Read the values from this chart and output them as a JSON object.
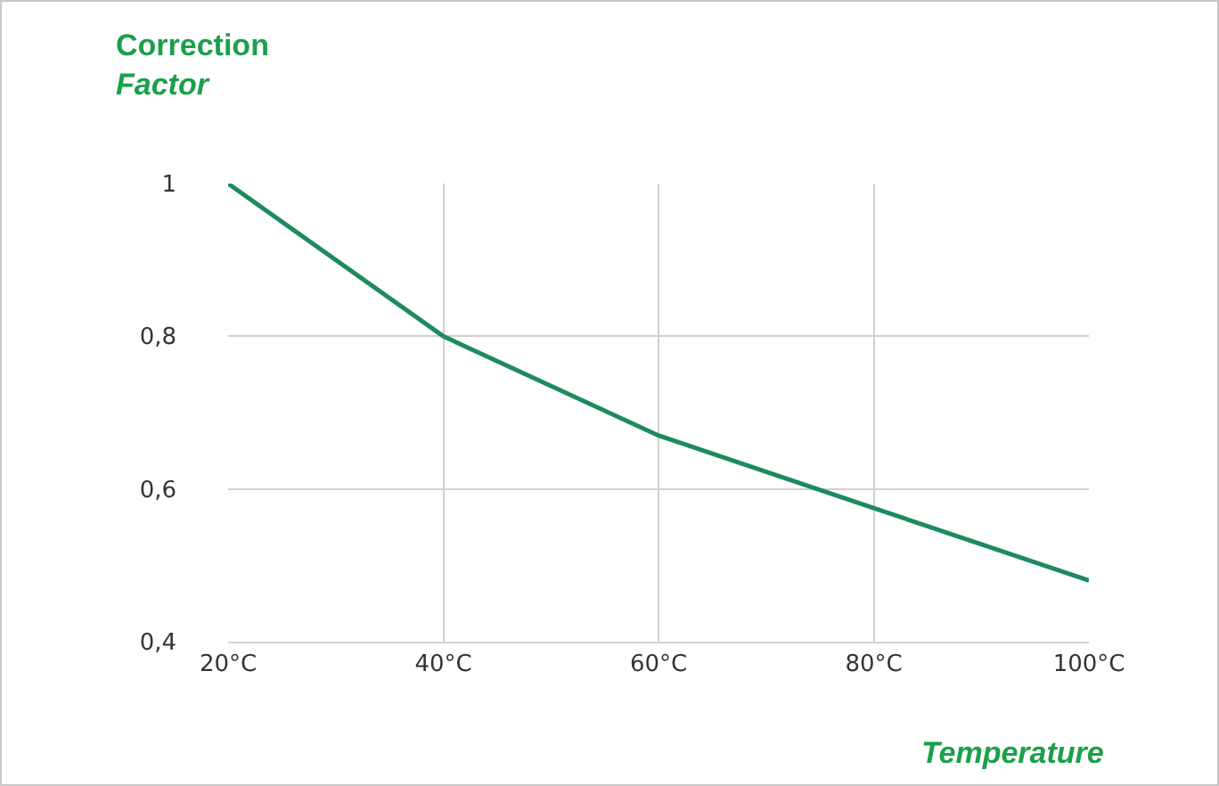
{
  "chart_data": {
    "type": "line",
    "ylabel": "Correction Factor",
    "xlabel": "Temperature",
    "x": [
      20,
      40,
      60,
      80,
      100
    ],
    "series": [
      {
        "color": "#1e8a5e",
        "values": [
          1,
          0.8,
          0.67,
          0.575,
          0.48
        ]
      }
    ],
    "xlim": [
      20,
      100
    ],
    "xticks": [
      {
        "value": 20,
        "label": "20°C"
      },
      {
        "value": 40,
        "label": "40°C"
      },
      {
        "value": 60,
        "label": "60°C"
      },
      {
        "value": 80,
        "label": "80°C"
      },
      {
        "value": 100,
        "label": "100°C"
      }
    ],
    "ylim": [
      0.4,
      1
    ],
    "yticks": [
      {
        "value": 0.4,
        "label": "0,4"
      },
      {
        "value": 0.6,
        "label": "0,6"
      },
      {
        "value": 0.8,
        "label": "0,8"
      },
      {
        "value": 1,
        "label": "1"
      }
    ],
    "grid": true,
    "marker": "none",
    "line_style": "solid"
  }
}
